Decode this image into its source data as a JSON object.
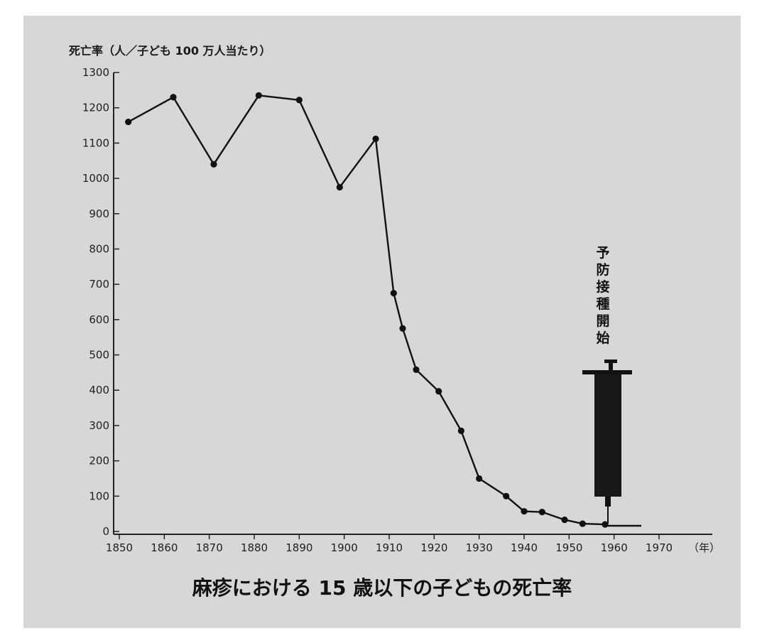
{
  "chart_data": {
    "type": "line",
    "title": "麻疹における 15 歳以下の子どもの死亡率",
    "ylabel": "死亡率（人／子ども 100 万人当たり）",
    "xlabel": "（年）",
    "xlim": [
      1850,
      1970
    ],
    "ylim": [
      0,
      1300
    ],
    "x_ticks": [
      "1850",
      "1860",
      "1870",
      "1880",
      "1890",
      "1900",
      "1910",
      "1920",
      "1930",
      "1940",
      "1950",
      "1960",
      "1970"
    ],
    "y_ticks": [
      "0",
      "100",
      "200",
      "300",
      "400",
      "500",
      "600",
      "700",
      "800",
      "900",
      "1000",
      "1100",
      "1200",
      "1300"
    ],
    "grid": false,
    "series": [
      {
        "x": [
          1852,
          1862,
          1871,
          1881,
          1890,
          1899,
          1907,
          1911,
          1913,
          1916,
          1921,
          1926,
          1930,
          1936,
          1940,
          1944,
          1949,
          1953,
          1958
        ],
        "y": [
          1160,
          1230,
          1040,
          1235,
          1222,
          975,
          1112,
          675,
          575,
          458,
          397,
          285,
          150,
          100,
          57,
          55,
          33,
          22,
          20
        ]
      }
    ],
    "annotations": [
      {
        "text": "予防接種開始",
        "x": 1958,
        "icon": "syringe-icon"
      }
    ],
    "colors": {
      "line": "#111111",
      "marker": "#111111",
      "background": "#d7d7d9"
    }
  }
}
